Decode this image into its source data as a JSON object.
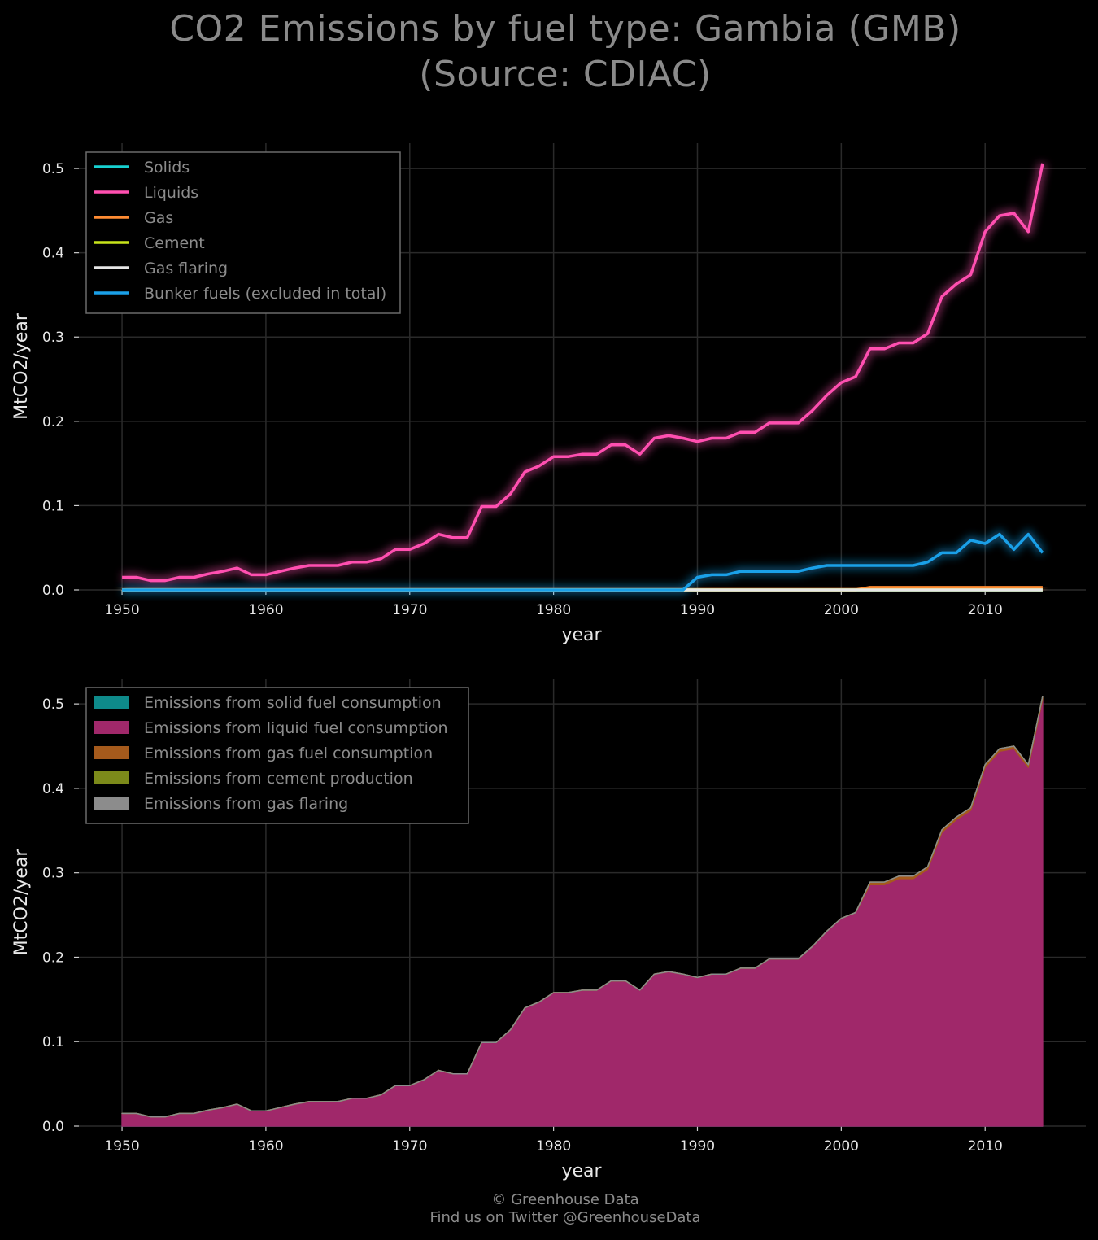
{
  "title_line1": "CO2 Emissions by fuel type: Gambia (GMB)",
  "title_line2": "(Source: CDIAC)",
  "footer_line1": "© Greenhouse Data",
  "footer_line2": "Find us on Twitter @GreenhouseData",
  "chart_data": [
    {
      "type": "line",
      "xlabel": "year",
      "ylabel": "MtCO2/year",
      "xlim": [
        1947,
        2017
      ],
      "ylim": [
        0,
        0.53
      ],
      "xticks": [
        1950,
        1960,
        1970,
        1980,
        1990,
        2000,
        2010
      ],
      "yticks": [
        0.0,
        0.1,
        0.2,
        0.3,
        0.4,
        0.5
      ],
      "grid": true,
      "legend_position": "top-left",
      "x": [
        1950,
        1951,
        1952,
        1953,
        1954,
        1955,
        1956,
        1957,
        1958,
        1959,
        1960,
        1961,
        1962,
        1963,
        1964,
        1965,
        1966,
        1967,
        1968,
        1969,
        1970,
        1971,
        1972,
        1973,
        1974,
        1975,
        1976,
        1977,
        1978,
        1979,
        1980,
        1981,
        1982,
        1983,
        1984,
        1985,
        1986,
        1987,
        1988,
        1989,
        1990,
        1991,
        1992,
        1993,
        1994,
        1995,
        1996,
        1997,
        1998,
        1999,
        2000,
        2001,
        2002,
        2003,
        2004,
        2005,
        2006,
        2007,
        2008,
        2009,
        2010,
        2011,
        2012,
        2013,
        2014
      ],
      "series": [
        {
          "name": "Solids",
          "color": "#17d1d1",
          "values": [
            0,
            0,
            0,
            0,
            0,
            0,
            0,
            0,
            0,
            0,
            0,
            0,
            0,
            0,
            0,
            0,
            0,
            0,
            0,
            0,
            0,
            0,
            0,
            0,
            0,
            0,
            0,
            0,
            0,
            0,
            0,
            0,
            0,
            0,
            0,
            0,
            0,
            0,
            0,
            0,
            0,
            0,
            0,
            0,
            0,
            0,
            0,
            0,
            0,
            0,
            0,
            0,
            0,
            0,
            0,
            0,
            0,
            0,
            0,
            0,
            0,
            0,
            0,
            0,
            0
          ]
        },
        {
          "name": "Liquids",
          "color": "#ff4fb0",
          "values": [
            0.015,
            0.015,
            0.011,
            0.011,
            0.015,
            0.015,
            0.019,
            0.022,
            0.026,
            0.018,
            0.018,
            0.022,
            0.026,
            0.029,
            0.029,
            0.029,
            0.033,
            0.033,
            0.037,
            0.048,
            0.048,
            0.055,
            0.066,
            0.062,
            0.062,
            0.099,
            0.099,
            0.114,
            0.14,
            0.147,
            0.158,
            0.158,
            0.161,
            0.161,
            0.172,
            0.172,
            0.161,
            0.18,
            0.183,
            0.18,
            0.176,
            0.18,
            0.18,
            0.187,
            0.187,
            0.198,
            0.198,
            0.198,
            0.213,
            0.231,
            0.246,
            0.253,
            0.286,
            0.286,
            0.293,
            0.293,
            0.304,
            0.348,
            0.363,
            0.374,
            0.425,
            0.444,
            0.447,
            0.425,
            0.506
          ]
        },
        {
          "name": "Gas",
          "color": "#ff8c33",
          "values": [
            0,
            0,
            0,
            0,
            0,
            0,
            0,
            0,
            0,
            0,
            0,
            0,
            0,
            0,
            0,
            0,
            0,
            0,
            0,
            0,
            0,
            0,
            0,
            0,
            0,
            0,
            0,
            0,
            0,
            0,
            0,
            0,
            0,
            0,
            0,
            0,
            0,
            0,
            0,
            0,
            0,
            0,
            0,
            0,
            0,
            0,
            0,
            0,
            0,
            0,
            0,
            0,
            0.003,
            0.003,
            0.003,
            0.003,
            0.003,
            0.003,
            0.003,
            0.003,
            0.003,
            0.003,
            0.003,
            0.003,
            0.003
          ]
        },
        {
          "name": "Cement",
          "color": "#c7e41a",
          "values": [
            0,
            0,
            0,
            0,
            0,
            0,
            0,
            0,
            0,
            0,
            0,
            0,
            0,
            0,
            0,
            0,
            0,
            0,
            0,
            0,
            0,
            0,
            0,
            0,
            0,
            0,
            0,
            0,
            0,
            0,
            0,
            0,
            0,
            0,
            0,
            0,
            0,
            0,
            0,
            0,
            0,
            0,
            0,
            0,
            0,
            0,
            0,
            0,
            0,
            0,
            0,
            0,
            0,
            0,
            0,
            0,
            0,
            0,
            0,
            0,
            0,
            0,
            0,
            0,
            0
          ]
        },
        {
          "name": "Gas flaring",
          "color": "#e6e6e6",
          "values": [
            0,
            0,
            0,
            0,
            0,
            0,
            0,
            0,
            0,
            0,
            0,
            0,
            0,
            0,
            0,
            0,
            0,
            0,
            0,
            0,
            0,
            0,
            0,
            0,
            0,
            0,
            0,
            0,
            0,
            0,
            0,
            0,
            0,
            0,
            0,
            0,
            0,
            0,
            0,
            0,
            0,
            0,
            0,
            0,
            0,
            0,
            0,
            0,
            0,
            0,
            0,
            0,
            0,
            0,
            0,
            0,
            0,
            0,
            0,
            0,
            0,
            0,
            0,
            0,
            0
          ]
        },
        {
          "name": "Bunker fuels (excluded in total)",
          "color": "#1aa0e8",
          "values": [
            0,
            0,
            0,
            0,
            0,
            0,
            0,
            0,
            0,
            0,
            0,
            0,
            0,
            0,
            0,
            0,
            0,
            0,
            0,
            0,
            0,
            0,
            0,
            0,
            0,
            0,
            0,
            0,
            0,
            0,
            0,
            0,
            0,
            0,
            0,
            0,
            0,
            0,
            0,
            0,
            0.015,
            0.018,
            0.018,
            0.022,
            0.022,
            0.022,
            0.022,
            0.022,
            0.026,
            0.029,
            0.029,
            0.029,
            0.029,
            0.029,
            0.029,
            0.029,
            0.033,
            0.044,
            0.044,
            0.059,
            0.055,
            0.066,
            0.048,
            0.066,
            0.044
          ]
        }
      ]
    },
    {
      "type": "area",
      "xlabel": "year",
      "ylabel": "MtCO2/year",
      "xlim": [
        1947,
        2017
      ],
      "ylim": [
        0,
        0.53
      ],
      "xticks": [
        1950,
        1960,
        1970,
        1980,
        1990,
        2000,
        2010
      ],
      "yticks": [
        0.0,
        0.1,
        0.2,
        0.3,
        0.4,
        0.5
      ],
      "grid": true,
      "stacked": true,
      "legend_position": "top-left",
      "series": [
        {
          "name": "Emissions from solid fuel consumption",
          "color": "#0e8a8a",
          "source_series": 0
        },
        {
          "name": "Emissions from liquid fuel consumption",
          "color": "#a0286a",
          "source_series": 1
        },
        {
          "name": "Emissions from gas fuel consumption",
          "color": "#a55a1c",
          "source_series": 2
        },
        {
          "name": "Emissions from cement production",
          "color": "#7c8a1a",
          "source_series": 3
        },
        {
          "name": "Emissions from gas flaring",
          "color": "#8c8c8c",
          "source_series": 4
        }
      ]
    }
  ]
}
